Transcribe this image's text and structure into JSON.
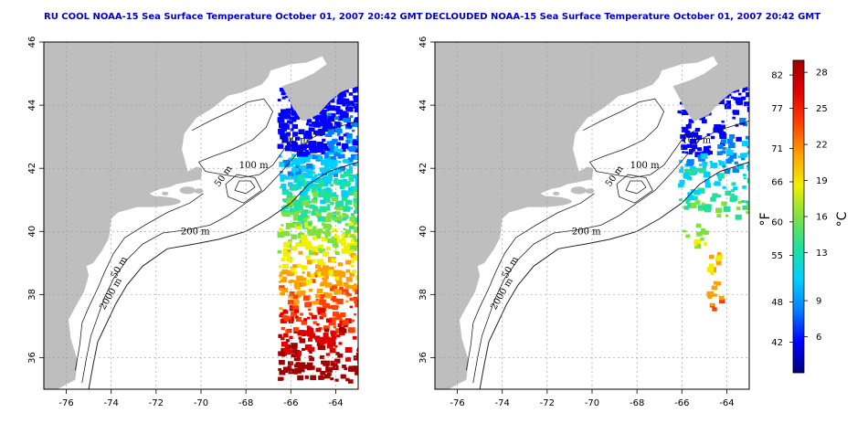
{
  "panels": [
    {
      "id": "left",
      "title": "RU COOL NOAA-15 Sea Surface Temperature October 01, 2007 20:42 GMT",
      "contours": [
        {
          "label": "100 m",
          "lon": -66.5,
          "lat": 42.8
        },
        {
          "label": "100 m",
          "lon": -68.3,
          "lat": 42.0
        },
        {
          "label": "50 m",
          "lon": -69.2,
          "lat": 41.4
        },
        {
          "label": "200 m",
          "lon": -70.9,
          "lat": 39.9
        },
        {
          "label": "50 m",
          "lon": -73.8,
          "lat": 38.5
        },
        {
          "label": "2000 m",
          "lon": -74.3,
          "lat": 37.5
        }
      ]
    },
    {
      "id": "right",
      "title": "DECLOUDED NOAA-15 Sea Surface Temperature October 01, 2007 20:42 GMT",
      "contours": [
        {
          "label": "100 m",
          "lon": -66.0,
          "lat": 42.8
        },
        {
          "label": "100 m",
          "lon": -68.3,
          "lat": 42.0
        },
        {
          "label": "50 m",
          "lon": -69.2,
          "lat": 41.4
        },
        {
          "label": "200 m",
          "lon": -70.9,
          "lat": 39.9
        },
        {
          "label": "50 m",
          "lon": -73.8,
          "lat": 38.5
        },
        {
          "label": "2000 m",
          "lon": -74.3,
          "lat": 37.5
        }
      ]
    }
  ],
  "map": {
    "lon_range": [
      -77,
      -63
    ],
    "lat_range": [
      35,
      46
    ],
    "lon_ticks": [
      "-76",
      "-74",
      "-72",
      "-70",
      "-68",
      "-66",
      "-64"
    ],
    "lat_ticks": [
      "36",
      "38",
      "40",
      "42",
      "44",
      "46"
    ],
    "land_color": "#bebebe",
    "grid": true
  },
  "colorbar": {
    "fahrenheit_ticks": [
      "82",
      "77",
      "71",
      "66",
      "60",
      "55",
      "48",
      "42"
    ],
    "celsius_ticks": [
      "28",
      "25",
      "22",
      "19",
      "16",
      "13",
      "9",
      "6"
    ],
    "fahrenheit_unit": "°F",
    "celsius_unit": "°C",
    "colors": [
      "#000080",
      "#0000ff",
      "#0080ff",
      "#00d0ff",
      "#20e0a0",
      "#80e040",
      "#f0f000",
      "#ffa000",
      "#ff4000",
      "#e00000",
      "#a00000"
    ]
  }
}
